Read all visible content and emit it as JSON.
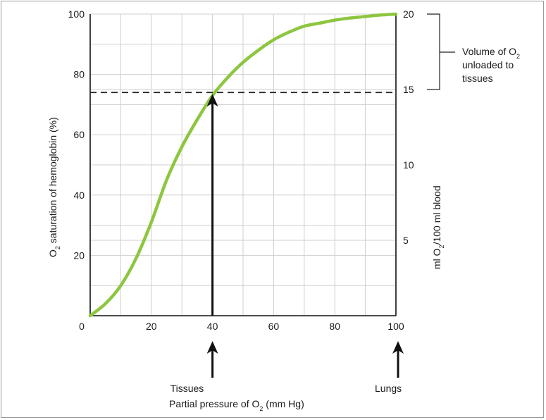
{
  "chart_data": {
    "type": "line",
    "xlabel_prefix": "Partial pressure of O",
    "xlabel_sub": "2",
    "xlabel_suffix": " (mm Hg)",
    "ylabel_prefix": "O",
    "ylabel_sub": "2",
    "ylabel_suffix": " saturation of hemoglobin (%)",
    "y2label_prefix": "ml O",
    "y2label_sub": "2",
    "y2label_suffix": "/100 ml blood",
    "xlim": [
      0,
      100
    ],
    "ylim": [
      0,
      100
    ],
    "y2lim": [
      0,
      20
    ],
    "x_ticks": [
      "0",
      "20",
      "40",
      "60",
      "80",
      "100"
    ],
    "x_tick_values": [
      0,
      20,
      40,
      60,
      80,
      100
    ],
    "y_ticks": [
      "20",
      "40",
      "60",
      "80",
      "100"
    ],
    "y_tick_values": [
      20,
      40,
      60,
      80,
      100
    ],
    "y2_ticks": [
      "5",
      "10",
      "15",
      "20"
    ],
    "y2_tick_values": [
      5,
      10,
      15,
      20
    ],
    "grid": true,
    "series": [
      {
        "color": "#8dc63f",
        "x": [
          0,
          5,
          10,
          15,
          20,
          25,
          30,
          35,
          40,
          45,
          50,
          55,
          60,
          65,
          70,
          75,
          80,
          85,
          90,
          95,
          100
        ],
        "y": [
          0,
          4,
          10,
          19,
          31,
          45,
          56,
          65,
          73,
          79,
          84,
          88,
          91.5,
          94,
          96,
          97,
          98,
          98.7,
          99.2,
          99.7,
          100
        ]
      }
    ],
    "reference_line": {
      "y": 74,
      "style": "dashed",
      "color": "#222222"
    },
    "annotations": {
      "volume_prefix": "Volume of O",
      "volume_sub": "2",
      "volume_line2": "unloaded to",
      "volume_line3": "tissues",
      "volume_range_y2": [
        15,
        20
      ],
      "tissues": {
        "label": "Tissues",
        "x": 40
      },
      "lungs": {
        "label": "Lungs",
        "x": 100
      },
      "inner_arrow": {
        "x": 40,
        "y_from": 0,
        "y_to": 74
      }
    }
  }
}
